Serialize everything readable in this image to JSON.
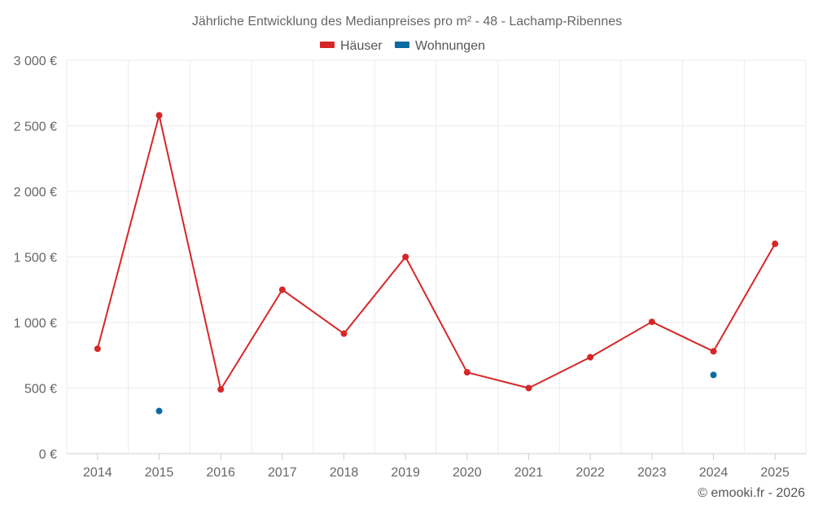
{
  "chart_data": {
    "type": "line",
    "title": "Jährliche Entwicklung des Medianpreises pro m² - 48 - Lachamp-Ribennes",
    "xlabel": "",
    "ylabel": "",
    "categories": [
      "2014",
      "2015",
      "2016",
      "2017",
      "2018",
      "2019",
      "2020",
      "2021",
      "2022",
      "2023",
      "2024",
      "2025"
    ],
    "ylim": [
      0,
      3000
    ],
    "yticks": [
      0,
      500,
      1000,
      1500,
      2000,
      2500,
      3000
    ],
    "ytick_labels": [
      "0 €",
      "500 €",
      "1 000 €",
      "1 500 €",
      "2 000 €",
      "2 500 €",
      "3 000 €"
    ],
    "grid": true,
    "legend_position": "top-center",
    "series": [
      {
        "name": "Häuser",
        "color": "#d62728",
        "values": [
          800,
          2580,
          490,
          1250,
          915,
          1500,
          620,
          500,
          735,
          1005,
          780,
          1600
        ],
        "line": true
      },
      {
        "name": "Wohnungen",
        "color": "#0a6aa1",
        "values": [
          null,
          325,
          null,
          null,
          null,
          null,
          null,
          null,
          null,
          null,
          600,
          null
        ],
        "line": false
      }
    ],
    "credit": "© emooki.fr - 2026"
  }
}
